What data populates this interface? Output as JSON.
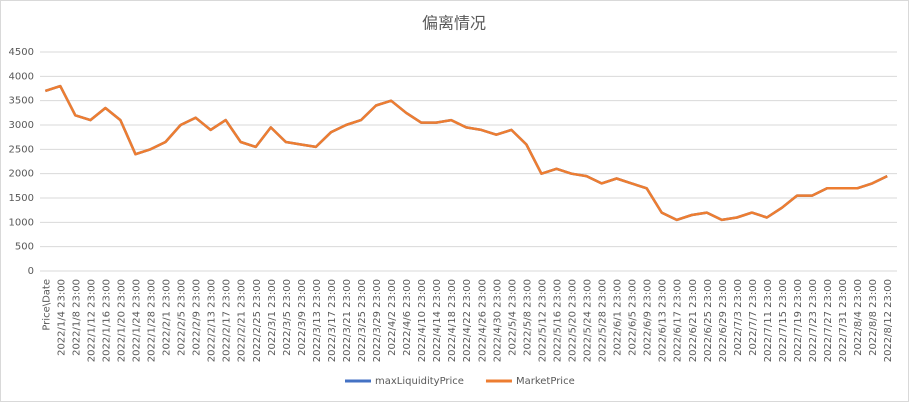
{
  "chart_data": {
    "type": "line",
    "title": "偏离情况",
    "categories": [
      "Price\\Date",
      "2022/1/4 23:00",
      "2022/1/8 23:00",
      "2022/1/12 23:00",
      "2022/1/16 23:00",
      "2022/1/20 23:00",
      "2022/1/24 23:00",
      "2022/1/28 23:00",
      "2022/2/1 23:00",
      "2022/2/5 23:00",
      "2022/2/9 23:00",
      "2022/2/13 23:00",
      "2022/2/17 23:00",
      "2022/2/21 23:00",
      "2022/2/25 23:00",
      "2022/3/1 23:00",
      "2022/3/5 23:00",
      "2022/3/9 23:00",
      "2022/3/13 23:00",
      "2022/3/17 23:00",
      "2022/3/21 23:00",
      "2022/3/25 23:00",
      "2022/3/29 23:00",
      "2022/4/2 23:00",
      "2022/4/6 23:00",
      "2022/4/10 23:00",
      "2022/4/14 23:00",
      "2022/4/18 23:00",
      "2022/4/22 23:00",
      "2022/4/26 23:00",
      "2022/4/30 23:00",
      "2022/5/4 23:00",
      "2022/5/8 23:00",
      "2022/5/12 23:00",
      "2022/5/16 23:00",
      "2022/5/20 23:00",
      "2022/5/24 23:00",
      "2022/5/28 23:00",
      "2022/6/1 23:00",
      "2022/6/5 23:00",
      "2022/6/9 23:00",
      "2022/6/13 23:00",
      "2022/6/17 23:00",
      "2022/6/21 23:00",
      "2022/6/25 23:00",
      "2022/6/29 23:00",
      "2022/7/3 23:00",
      "2022/7/7 23:00",
      "2022/7/11 23:00",
      "2022/7/15 23:00",
      "2022/7/19 23:00",
      "2022/7/23 23:00",
      "2022/7/27 23:00",
      "2022/7/31 23:00",
      "2022/8/4 23:00",
      "2022/8/8 23:00",
      "2022/8/12 23:00"
    ],
    "series": [
      {
        "name": "maxLiquidityPrice",
        "color": "#4472c4",
        "values": [
          3700,
          3800,
          3200,
          3100,
          3350,
          3100,
          2400,
          2500,
          2650,
          3000,
          3150,
          2900,
          3100,
          2650,
          2550,
          2950,
          2650,
          2600,
          2550,
          2850,
          3000,
          3100,
          3400,
          3500,
          3250,
          3050,
          3050,
          3100,
          2950,
          2900,
          2800,
          2900,
          2600,
          2000,
          2100,
          2000,
          1950,
          1800,
          1900,
          1800,
          1700,
          1200,
          1050,
          1150,
          1200,
          1050,
          1100,
          1200,
          1100,
          1300,
          1550,
          1550,
          1700,
          1700,
          1700,
          1800,
          1950
        ]
      },
      {
        "name": "MarketPrice",
        "color": "#ed7d31",
        "values": [
          3700,
          3800,
          3200,
          3100,
          3350,
          3100,
          2400,
          2500,
          2650,
          3000,
          3150,
          2900,
          3100,
          2650,
          2550,
          2950,
          2650,
          2600,
          2550,
          2850,
          3000,
          3100,
          3400,
          3500,
          3250,
          3050,
          3050,
          3100,
          2950,
          2900,
          2800,
          2900,
          2600,
          2000,
          2100,
          2000,
          1950,
          1800,
          1900,
          1800,
          1700,
          1200,
          1050,
          1150,
          1200,
          1050,
          1100,
          1200,
          1100,
          1300,
          1550,
          1550,
          1700,
          1700,
          1700,
          1800,
          1950
        ]
      }
    ],
    "ylim": [
      0,
      4500
    ],
    "yticks": [
      0,
      500,
      1000,
      1500,
      2000,
      2500,
      3000,
      3500,
      4000,
      4500
    ],
    "grid": true,
    "legend": "bottom"
  }
}
